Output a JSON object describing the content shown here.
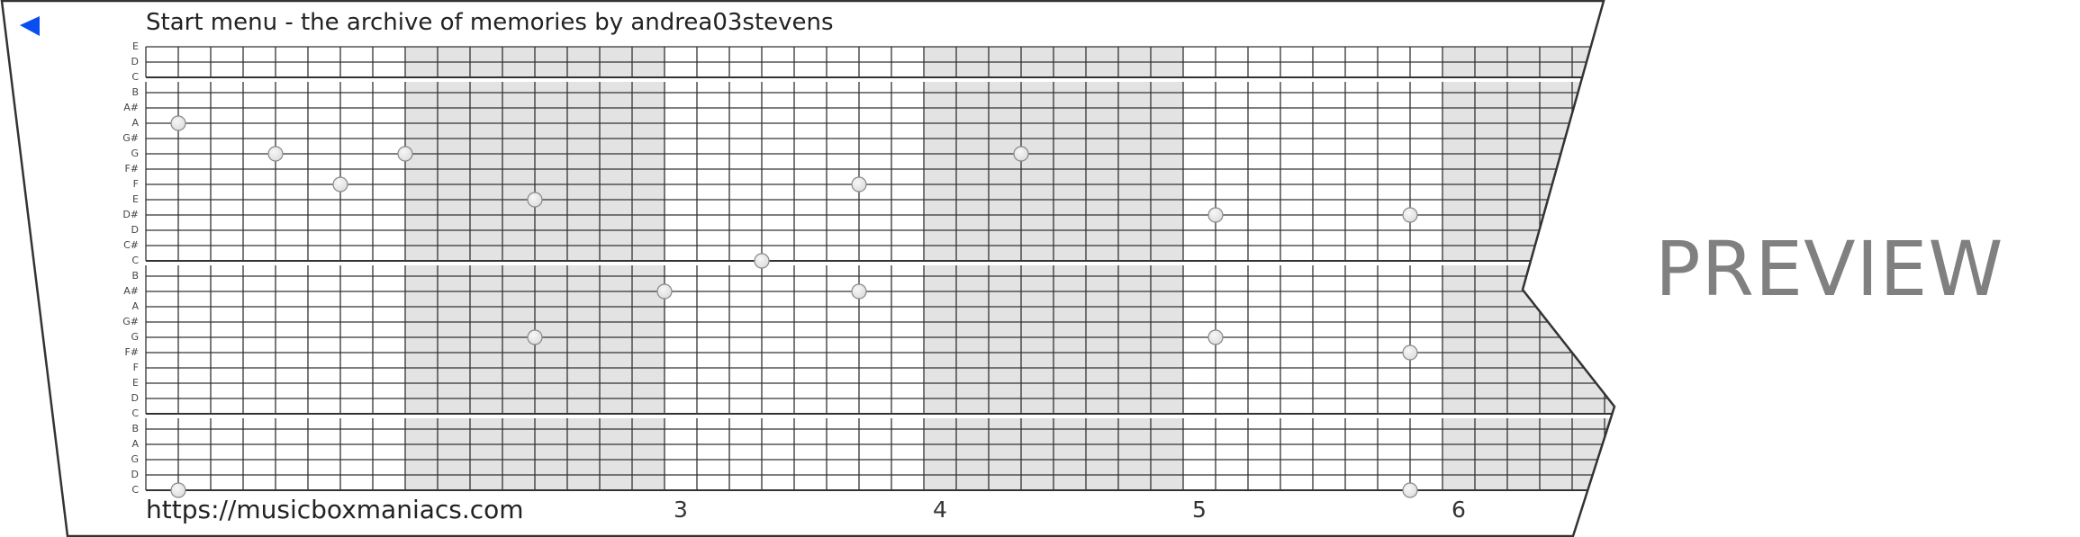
{
  "header": {
    "title": "Start menu - the archive of memories by andrea03stevens",
    "back_icon": "back-arrow-icon",
    "accent": "#0a4ef0"
  },
  "footer": {
    "url": "https://musicboxmaniacs.com"
  },
  "watermark": "PREVIEW",
  "measures": [
    {
      "label": "3",
      "step": 16
    },
    {
      "label": "4",
      "step": 24
    },
    {
      "label": "5",
      "step": 32
    },
    {
      "label": "6",
      "step": 40
    }
  ],
  "grid": {
    "lanes": [
      "E",
      "D",
      "C",
      "B",
      "A#",
      "A",
      "G#",
      "G",
      "F#",
      "F",
      "E",
      "D#",
      "D",
      "C#",
      "C",
      "B",
      "A#",
      "A",
      "G#",
      "G",
      "F#",
      "F",
      "E",
      "D",
      "C",
      "B",
      "A",
      "G",
      "D",
      "C"
    ],
    "lane_groups": [
      [
        0,
        2
      ],
      [
        3,
        14
      ],
      [
        15,
        24
      ],
      [
        25,
        29
      ]
    ],
    "steps_per_measure": 8,
    "shade_color": "#e3e3e3",
    "line_color": "#333333"
  },
  "notes": [
    {
      "step": 1,
      "lane": 5,
      "note": "A"
    },
    {
      "step": 1,
      "lane": 29,
      "note": "C"
    },
    {
      "step": 4,
      "lane": 7,
      "note": "G"
    },
    {
      "step": 6,
      "lane": 9,
      "note": "F"
    },
    {
      "step": 8,
      "lane": 7,
      "note": "G"
    },
    {
      "step": 12,
      "lane": 10,
      "note": "E"
    },
    {
      "step": 12,
      "lane": 19,
      "note": "G"
    },
    {
      "step": 16,
      "lane": 16,
      "note": "A#"
    },
    {
      "step": 19,
      "lane": 14,
      "note": "C"
    },
    {
      "step": 22,
      "lane": 9,
      "note": "F"
    },
    {
      "step": 22,
      "lane": 16,
      "note": "A#"
    },
    {
      "step": 27,
      "lane": 7,
      "note": "G"
    },
    {
      "step": 33,
      "lane": 11,
      "note": "D#"
    },
    {
      "step": 33,
      "lane": 19,
      "note": "G"
    },
    {
      "step": 39,
      "lane": 11,
      "note": "D#"
    },
    {
      "step": 39,
      "lane": 20,
      "note": "F#"
    },
    {
      "step": 39,
      "lane": 29,
      "note": "C"
    }
  ]
}
